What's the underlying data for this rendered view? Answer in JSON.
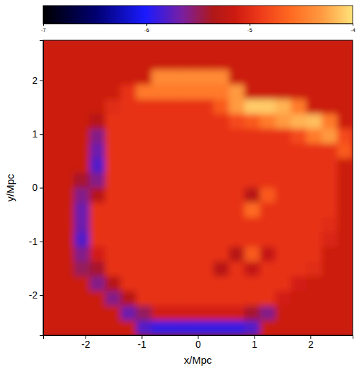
{
  "chart_data": {
    "type": "heatmap",
    "xlabel": "x/Mpc",
    "ylabel": "y/Mpc",
    "xlim": [
      -2.75,
      2.75
    ],
    "ylim": [
      -2.75,
      2.75
    ],
    "xticks": [
      -2,
      -1,
      0,
      1,
      2
    ],
    "yticks": [
      -2,
      -1,
      0,
      1,
      2
    ],
    "zlim": [
      -7,
      -4
    ],
    "zticks": [
      -7,
      -6,
      -5,
      -4
    ],
    "cells": [
      [
        -5.15,
        -5.15,
        -5.15,
        -5.15,
        -5.15,
        -5.15,
        -5.15,
        -5.15,
        -5.15,
        -5.15,
        -5.15,
        -5.15,
        -5.15,
        -5.15,
        -5.15,
        -5.15,
        -5.15,
        -5.15,
        -5.15,
        -5.15
      ],
      [
        -5.15,
        -5.15,
        -5.15,
        -5.15,
        -5.15,
        -5.15,
        -5.15,
        -5.15,
        -5.15,
        -5.15,
        -5.15,
        -5.15,
        -5.15,
        -5.15,
        -5.15,
        -5.15,
        -5.15,
        -5.15,
        -5.15,
        -5.15
      ],
      [
        -5.15,
        -5.15,
        -5.15,
        -5.15,
        -5.15,
        -5.15,
        -5.15,
        -4.4,
        -4.4,
        -4.4,
        -4.4,
        -4.4,
        -5.15,
        -5.15,
        -5.15,
        -5.15,
        -5.15,
        -5.15,
        -5.15,
        -5.15
      ],
      [
        -5.15,
        -5.15,
        -5.15,
        -5.15,
        -5.15,
        -4.95,
        -4.5,
        -4.5,
        -4.5,
        -4.5,
        -4.5,
        -4.5,
        -4.3,
        -5.15,
        -5.15,
        -5.15,
        -5.15,
        -5.15,
        -5.15,
        -5.15
      ],
      [
        -5.15,
        -5.15,
        -5.15,
        -5.15,
        -5.0,
        -4.95,
        -4.95,
        -4.95,
        -4.95,
        -4.95,
        -4.95,
        -4.7,
        -4.3,
        -4.1,
        -4.1,
        -4.2,
        -4.5,
        -5.15,
        -5.15,
        -5.15
      ],
      [
        -5.15,
        -5.15,
        -5.15,
        -5.3,
        -4.95,
        -4.95,
        -4.95,
        -4.95,
        -4.95,
        -4.95,
        -4.95,
        -4.95,
        -4.8,
        -4.7,
        -4.5,
        -4.3,
        -4.2,
        -4.15,
        -4.5,
        -5.15
      ],
      [
        -5.15,
        -5.15,
        -5.15,
        -5.6,
        -4.95,
        -4.95,
        -4.95,
        -4.95,
        -4.95,
        -4.95,
        -4.95,
        -4.95,
        -4.95,
        -4.95,
        -4.95,
        -4.95,
        -4.8,
        -4.5,
        -4.3,
        -4.8
      ],
      [
        -5.15,
        -5.15,
        -5.15,
        -5.7,
        -4.95,
        -4.95,
        -4.95,
        -4.95,
        -4.95,
        -4.95,
        -4.95,
        -4.95,
        -4.95,
        -4.95,
        -4.95,
        -4.95,
        -4.95,
        -4.95,
        -4.95,
        -4.7
      ],
      [
        -5.15,
        -5.15,
        -5.15,
        -5.8,
        -4.95,
        -4.95,
        -4.95,
        -4.95,
        -4.95,
        -4.95,
        -4.95,
        -4.95,
        -4.95,
        -4.95,
        -4.95,
        -4.95,
        -4.95,
        -4.95,
        -4.95,
        -5.15
      ],
      [
        -5.15,
        -5.15,
        -5.4,
        -5.6,
        -4.95,
        -4.95,
        -4.95,
        -4.95,
        -4.95,
        -4.95,
        -4.95,
        -4.95,
        -4.95,
        -4.95,
        -4.95,
        -4.95,
        -4.95,
        -4.95,
        -4.95,
        -5.15
      ],
      [
        -5.15,
        -5.15,
        -5.6,
        -5.3,
        -4.95,
        -4.95,
        -4.95,
        -4.95,
        -4.95,
        -4.95,
        -4.95,
        -4.95,
        -4.95,
        -5.3,
        -4.7,
        -4.95,
        -4.95,
        -4.95,
        -4.95,
        -5.15
      ],
      [
        -5.15,
        -5.15,
        -5.7,
        -4.95,
        -4.95,
        -4.95,
        -4.95,
        -4.95,
        -4.95,
        -4.95,
        -4.95,
        -4.95,
        -4.95,
        -4.6,
        -4.95,
        -4.95,
        -4.95,
        -4.95,
        -4.95,
        -5.15
      ],
      [
        -5.15,
        -5.15,
        -5.7,
        -4.95,
        -4.95,
        -4.95,
        -4.95,
        -4.95,
        -4.95,
        -4.95,
        -4.95,
        -4.95,
        -4.95,
        -4.95,
        -4.95,
        -4.95,
        -4.95,
        -4.95,
        -5.0,
        -5.15
      ],
      [
        -5.15,
        -5.15,
        -5.8,
        -4.95,
        -4.95,
        -4.95,
        -4.95,
        -4.95,
        -4.95,
        -4.95,
        -4.95,
        -4.95,
        -4.95,
        -4.95,
        -4.95,
        -4.95,
        -4.95,
        -4.95,
        -5.05,
        -5.15
      ],
      [
        -5.15,
        -5.15,
        -5.6,
        -5.1,
        -4.95,
        -4.95,
        -4.95,
        -4.95,
        -4.95,
        -4.95,
        -4.95,
        -4.95,
        -5.3,
        -4.7,
        -5.2,
        -4.95,
        -4.95,
        -4.95,
        -5.15,
        -5.15
      ],
      [
        -5.15,
        -5.15,
        -5.5,
        -5.4,
        -4.95,
        -4.95,
        -4.95,
        -4.95,
        -4.95,
        -4.95,
        -4.95,
        -5.3,
        -4.95,
        -5.2,
        -4.95,
        -4.95,
        -4.95,
        -5.0,
        -5.15,
        -5.15
      ],
      [
        -5.15,
        -5.15,
        -5.15,
        -5.6,
        -5.3,
        -4.95,
        -4.95,
        -4.95,
        -4.95,
        -4.95,
        -4.95,
        -4.95,
        -4.95,
        -4.95,
        -4.95,
        -4.95,
        -5.1,
        -5.15,
        -5.15,
        -5.15
      ],
      [
        -5.15,
        -5.15,
        -5.15,
        -5.15,
        -5.6,
        -5.3,
        -4.95,
        -4.95,
        -4.95,
        -4.95,
        -4.95,
        -4.95,
        -4.95,
        -4.95,
        -4.95,
        -5.1,
        -5.15,
        -5.15,
        -5.15,
        -5.15
      ],
      [
        -5.15,
        -5.15,
        -5.15,
        -5.15,
        -5.15,
        -5.7,
        -5.5,
        -5.1,
        -5.1,
        -5.1,
        -5.1,
        -5.1,
        -5.1,
        -5.4,
        -5.6,
        -5.15,
        -5.15,
        -5.15,
        -5.15,
        -5.15
      ],
      [
        -5.15,
        -5.15,
        -5.15,
        -5.15,
        -5.15,
        -5.15,
        -5.8,
        -5.9,
        -5.9,
        -5.9,
        -5.9,
        -5.9,
        -5.9,
        -5.8,
        -5.15,
        -5.15,
        -5.15,
        -5.15,
        -5.15,
        -5.15
      ]
    ]
  }
}
